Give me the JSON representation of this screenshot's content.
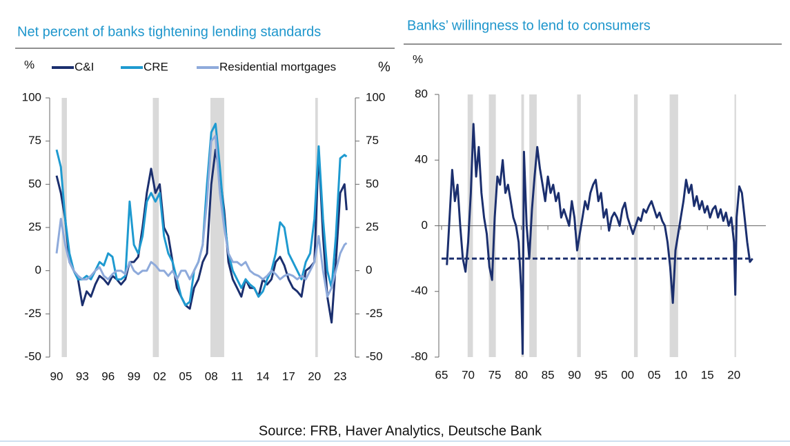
{
  "chart_data": [
    {
      "type": "line",
      "title": "Net percent of banks tightening lending standards",
      "ylabel": "%",
      "y2label": "%",
      "xlim": [
        1990,
        2024.6
      ],
      "ylim": [
        -50,
        100
      ],
      "y2lim": [
        -50,
        100
      ],
      "xticks": [
        {
          "value": 1990,
          "label": "90"
        },
        {
          "value": 1993,
          "label": "93"
        },
        {
          "value": 1996,
          "label": "96"
        },
        {
          "value": 1999,
          "label": "99"
        },
        {
          "value": 2002,
          "label": "02"
        },
        {
          "value": 2005,
          "label": "05"
        },
        {
          "value": 2008,
          "label": "08"
        },
        {
          "value": 2011,
          "label": "11"
        },
        {
          "value": 2014,
          "label": "14"
        },
        {
          "value": 2017,
          "label": "17"
        },
        {
          "value": 2020,
          "label": "20"
        },
        {
          "value": 2023,
          "label": "23"
        }
      ],
      "yticks": [
        -50,
        -25,
        0,
        25,
        50,
        75,
        100
      ],
      "y2ticks": [
        -50,
        -25,
        0,
        25,
        50,
        75,
        100
      ],
      "recessions": [
        [
          1990.6,
          1991.2
        ],
        [
          2001.2,
          2001.9
        ],
        [
          2007.9,
          2009.5
        ],
        [
          2020.1,
          2020.4
        ]
      ],
      "x": [
        1990,
        1990.5,
        1991,
        1991.5,
        1992,
        1992.5,
        1993,
        1993.5,
        1994,
        1994.5,
        1995,
        1995.5,
        1996,
        1996.5,
        1997,
        1997.5,
        1998,
        1998.5,
        1999,
        1999.5,
        2000,
        2000.5,
        2001,
        2001.5,
        2002,
        2002.5,
        2003,
        2003.5,
        2004,
        2004.5,
        2005,
        2005.5,
        2006,
        2006.5,
        2007,
        2007.5,
        2008,
        2008.5,
        2009,
        2009.5,
        2010,
        2010.5,
        2011,
        2011.5,
        2012,
        2012.5,
        2013,
        2013.5,
        2014,
        2014.5,
        2015,
        2015.5,
        2016,
        2016.5,
        2017,
        2017.5,
        2018,
        2018.5,
        2019,
        2019.5,
        2020,
        2020.5,
        2021,
        2021.5,
        2022,
        2022.5,
        2023,
        2023.5,
        2023.75
      ],
      "series": [
        {
          "name": "C&I",
          "color": "#1b2f6e",
          "values": [
            55,
            45,
            30,
            5,
            0,
            -5,
            -20,
            -12,
            -15,
            -8,
            -3,
            -5,
            -8,
            -3,
            -5,
            -8,
            -5,
            5,
            5,
            8,
            25,
            45,
            59,
            45,
            50,
            25,
            20,
            5,
            -10,
            -15,
            -20,
            -22,
            -10,
            -5,
            5,
            10,
            50,
            70,
            55,
            35,
            5,
            -5,
            -10,
            -15,
            -5,
            -10,
            -10,
            -15,
            -5,
            -8,
            -5,
            5,
            8,
            3,
            -5,
            -10,
            -12,
            -15,
            0,
            2,
            5,
            70,
            20,
            -15,
            -30,
            5,
            45,
            50,
            35
          ]
        },
        {
          "name": "CRE",
          "color": "#1e9ad0",
          "values": [
            70,
            60,
            30,
            10,
            0,
            -5,
            -5,
            -3,
            -5,
            0,
            5,
            3,
            10,
            8,
            -5,
            -5,
            -3,
            40,
            15,
            10,
            20,
            40,
            45,
            40,
            45,
            20,
            10,
            5,
            -5,
            -15,
            -20,
            -18,
            0,
            5,
            15,
            50,
            80,
            85,
            60,
            30,
            10,
            0,
            -5,
            -10,
            -5,
            -8,
            -10,
            -15,
            -12,
            -5,
            0,
            10,
            28,
            25,
            10,
            5,
            0,
            -5,
            5,
            10,
            30,
            72,
            30,
            0,
            -10,
            20,
            65,
            67,
            66
          ]
        },
        {
          "name": "Residential mortgages",
          "color": "#8eaadb",
          "values": [
            10,
            30,
            15,
            5,
            0,
            -3,
            -5,
            -5,
            -3,
            0,
            2,
            -3,
            -5,
            -2,
            0,
            0,
            -2,
            5,
            0,
            -2,
            0,
            0,
            5,
            3,
            0,
            0,
            -3,
            0,
            -5,
            0,
            0,
            -5,
            0,
            5,
            15,
            40,
            75,
            78,
            45,
            25,
            10,
            5,
            5,
            3,
            5,
            0,
            -2,
            -3,
            -5,
            -3,
            0,
            -2,
            -5,
            -3,
            -2,
            -3,
            -5,
            -3,
            -5,
            0,
            5,
            20,
            0,
            -15,
            -10,
            0,
            10,
            15,
            16
          ]
        }
      ]
    },
    {
      "type": "line",
      "title": "Banks’ willingness to lend to consumers",
      "ylabel": "%",
      "xlim": [
        1965,
        2026
      ],
      "ylim": [
        -80,
        80
      ],
      "xticks": [
        {
          "value": 1965,
          "label": "65"
        },
        {
          "value": 1970,
          "label": "70"
        },
        {
          "value": 1975,
          "label": "75"
        },
        {
          "value": 1980,
          "label": "80"
        },
        {
          "value": 1985,
          "label": "85"
        },
        {
          "value": 1990,
          "label": "90"
        },
        {
          "value": 1995,
          "label": "95"
        },
        {
          "value": 2000,
          "label": "00"
        },
        {
          "value": 2005,
          "label": "05"
        },
        {
          "value": 2010,
          "label": "10"
        },
        {
          "value": 2015,
          "label": "15"
        },
        {
          "value": 2020,
          "label": "20"
        }
      ],
      "yticks": [
        -80,
        -40,
        0,
        40,
        80
      ],
      "recessions": [
        [
          1969.9,
          1970.9
        ],
        [
          1973.9,
          1975.2
        ],
        [
          1980.0,
          1980.5
        ],
        [
          1981.5,
          1982.9
        ],
        [
          1990.5,
          1991.2
        ],
        [
          2001.2,
          2001.9
        ],
        [
          2007.9,
          2009.5
        ],
        [
          2020.1,
          2020.4
        ]
      ],
      "reference_line": -20,
      "x": [
        1966,
        1966.5,
        1967,
        1967.5,
        1968,
        1968.5,
        1969,
        1969.5,
        1970,
        1970.5,
        1971,
        1971.5,
        1972,
        1972.5,
        1973,
        1973.5,
        1974,
        1974.5,
        1975,
        1975.5,
        1976,
        1976.5,
        1977,
        1977.5,
        1978,
        1978.5,
        1979,
        1979.5,
        1980,
        1980.25,
        1980.5,
        1981,
        1981.5,
        1982,
        1982.5,
        1983,
        1983.5,
        1984,
        1984.5,
        1985,
        1985.5,
        1986,
        1986.5,
        1987,
        1987.5,
        1988,
        1988.5,
        1989,
        1989.5,
        1990,
        1990.5,
        1991,
        1991.5,
        1992,
        1992.5,
        1993,
        1993.5,
        1994,
        1994.5,
        1995,
        1995.5,
        1996,
        1996.5,
        1997,
        1997.5,
        1998,
        1998.5,
        1999,
        1999.5,
        2000,
        2000.5,
        2001,
        2001.5,
        2002,
        2002.5,
        2003,
        2003.5,
        2004,
        2004.5,
        2005,
        2005.5,
        2006,
        2006.5,
        2007,
        2007.5,
        2008,
        2008.5,
        2009,
        2009.5,
        2010,
        2010.5,
        2011,
        2011.5,
        2012,
        2012.5,
        2013,
        2013.5,
        2014,
        2014.5,
        2015,
        2015.5,
        2016,
        2016.5,
        2017,
        2017.5,
        2018,
        2018.5,
        2019,
        2019.5,
        2020,
        2020.25,
        2020.5,
        2021,
        2021.5,
        2022,
        2022.5,
        2023,
        2023.5
      ],
      "series": [
        {
          "color": "#1b2f6e",
          "values": [
            -24,
            5,
            34,
            15,
            25,
            0,
            -20,
            -28,
            -10,
            20,
            62,
            30,
            48,
            20,
            5,
            -5,
            -25,
            -33,
            5,
            30,
            25,
            40,
            20,
            25,
            15,
            5,
            0,
            -10,
            -40,
            -78,
            45,
            0,
            -20,
            10,
            30,
            48,
            35,
            25,
            15,
            30,
            20,
            25,
            15,
            20,
            5,
            10,
            5,
            0,
            15,
            5,
            -15,
            -5,
            5,
            15,
            10,
            20,
            25,
            28,
            15,
            20,
            5,
            10,
            -3,
            5,
            8,
            5,
            0,
            10,
            14,
            5,
            0,
            -5,
            0,
            5,
            3,
            10,
            8,
            12,
            15,
            10,
            5,
            8,
            3,
            0,
            -10,
            -25,
            -47,
            -15,
            -5,
            5,
            15,
            28,
            20,
            25,
            12,
            18,
            10,
            15,
            8,
            12,
            5,
            10,
            12,
            5,
            10,
            3,
            8,
            0,
            5,
            -10,
            -42,
            5,
            24,
            20,
            5,
            -10,
            -22,
            -20
          ]
        }
      ]
    }
  ],
  "source": "Source: FRB, Haver Analytics, Deutsche Bank"
}
